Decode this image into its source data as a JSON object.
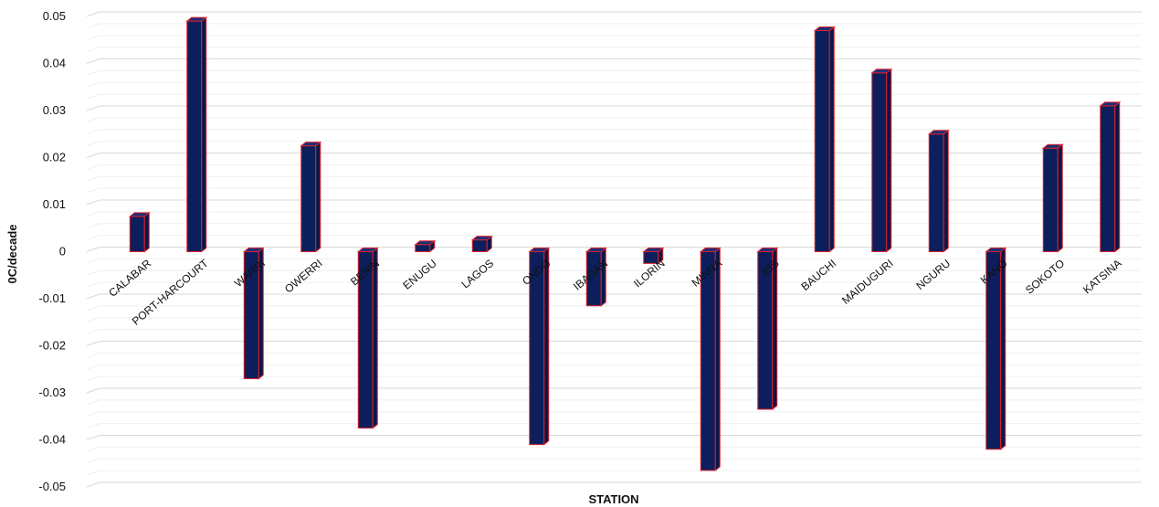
{
  "chart_data": {
    "type": "bar",
    "title": "",
    "xlabel": "STATION",
    "ylabel": "0C/decade",
    "ylim": [
      -0.05,
      0.05
    ],
    "yticks": [
      "0.05",
      "0.04",
      "0.03",
      "0.02",
      "0.01",
      "0",
      "-0.01",
      "-0.02",
      "-0.03",
      "-0.04",
      "-0.05"
    ],
    "categories": [
      "CALABAR",
      "PORT-HARCOURT",
      "WARRI",
      "OWERRI",
      "BENIN",
      "ENUGU",
      "LAGOS",
      "ONDO",
      "IBADAN",
      "ILORIN",
      "MINNA",
      "JOS",
      "BAUCHI",
      "MAIDUGURI",
      "NGURU",
      "KANO",
      "SOKOTO",
      "KATSINA"
    ],
    "values": [
      0.0075,
      0.049,
      -0.027,
      0.0225,
      -0.0375,
      0.0015,
      0.0025,
      -0.041,
      -0.0115,
      -0.0025,
      -0.0465,
      -0.0335,
      0.047,
      0.038,
      0.025,
      -0.042,
      0.022,
      0.031
    ],
    "grid": true,
    "colors": {
      "bar_fill": "#0c1f5c",
      "bar_side": "#0a1748",
      "bar_top": "#1b2f78",
      "bar_edge": "#e0202a",
      "grid": "#d9d9d9"
    }
  }
}
